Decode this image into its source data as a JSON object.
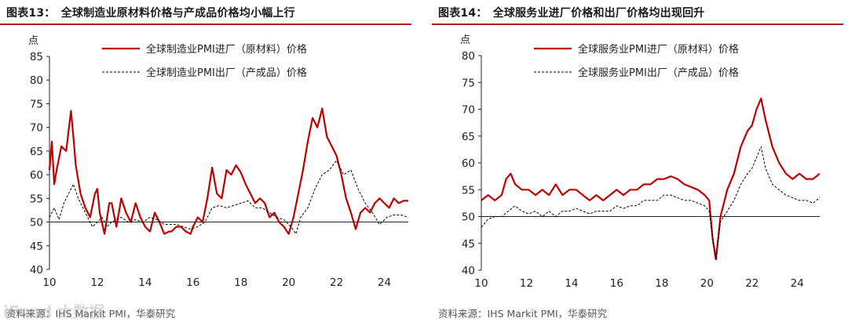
{
  "panels": [
    {
      "title": "图表13：　全球制造业原材料价格与产成品价格均小幅上行",
      "source": "资料来源：IHS Markit PMI，华泰研究"
    },
    {
      "title": "图表14：　全球服务业进厂价格和出厂价格均出现回升",
      "source": "资料来源：IHS Markit PMI，华泰研究"
    }
  ],
  "watermark": "iFund 大数据",
  "colors": {
    "input_line": "#c00000",
    "output_line": "#000000",
    "accent": "#b31b1b"
  },
  "chart_data": [
    {
      "type": "line",
      "ylabel": "点",
      "ylim": [
        40,
        85
      ],
      "yticks": [
        40,
        45,
        50,
        55,
        60,
        65,
        70,
        75,
        80,
        85
      ],
      "xlim": [
        2010,
        2025
      ],
      "xticks": [
        2010,
        2012,
        2014,
        2016,
        2018,
        2020,
        2022,
        2024
      ],
      "xtick_labels": [
        "10",
        "12",
        "14",
        "16",
        "18",
        "20",
        "22",
        "24"
      ],
      "baseline": 50,
      "legend": "top-center",
      "series": [
        {
          "name": "全球制造业PMI进厂（原材料）价格",
          "style": "solid",
          "x": [
            2010.0,
            2010.1,
            2010.2,
            2010.3,
            2010.5,
            2010.7,
            2010.9,
            2011.0,
            2011.1,
            2011.3,
            2011.5,
            2011.7,
            2011.9,
            2012.0,
            2012.1,
            2012.3,
            2012.5,
            2012.6,
            2012.8,
            2013.0,
            2013.2,
            2013.4,
            2013.6,
            2013.8,
            2014.0,
            2014.2,
            2014.4,
            2014.6,
            2014.8,
            2015.0,
            2015.1,
            2015.3,
            2015.5,
            2015.7,
            2015.9,
            2016.0,
            2016.2,
            2016.4,
            2016.6,
            2016.8,
            2017.0,
            2017.2,
            2017.4,
            2017.6,
            2017.8,
            2018.0,
            2018.2,
            2018.4,
            2018.6,
            2018.8,
            2019.0,
            2019.2,
            2019.4,
            2019.6,
            2019.8,
            2020.0,
            2020.2,
            2020.4,
            2020.6,
            2020.8,
            2021.0,
            2021.2,
            2021.4,
            2021.6,
            2021.8,
            2022.0,
            2022.2,
            2022.4,
            2022.6,
            2022.8,
            2023.0,
            2023.2,
            2023.4,
            2023.6,
            2023.8,
            2024.0,
            2024.2,
            2024.4,
            2024.6,
            2024.8,
            2025.0
          ],
          "values": [
            61,
            67,
            58,
            61,
            66,
            65,
            73.5,
            68,
            62,
            56,
            53,
            51,
            56,
            57,
            52,
            47.5,
            54,
            54,
            49,
            55,
            52,
            50,
            54,
            51,
            49,
            48,
            52,
            50,
            47.5,
            48,
            48,
            49,
            49,
            48,
            47.5,
            49,
            51,
            50,
            55,
            61.5,
            56,
            55,
            61,
            60,
            62,
            60.5,
            58,
            56,
            54,
            55,
            54,
            51,
            52,
            50,
            49,
            47.5,
            51,
            56,
            61,
            67,
            72,
            70,
            74,
            68,
            66,
            64,
            60,
            55,
            52,
            48.5,
            52,
            53,
            52,
            54,
            55,
            54,
            53,
            55,
            54,
            54.5,
            54.5
          ]
        },
        {
          "name": "全球制造业PMI出厂（产成品）价格",
          "style": "dashed",
          "x": [
            2010.0,
            2010.2,
            2010.4,
            2010.6,
            2010.8,
            2011.0,
            2011.2,
            2011.4,
            2011.6,
            2011.8,
            2012.0,
            2012.2,
            2012.4,
            2012.6,
            2012.8,
            2013.0,
            2013.3,
            2013.6,
            2013.9,
            2014.2,
            2014.5,
            2014.8,
            2015.0,
            2015.3,
            2015.6,
            2015.9,
            2016.2,
            2016.5,
            2016.8,
            2017.1,
            2017.4,
            2017.7,
            2018.0,
            2018.3,
            2018.6,
            2018.9,
            2019.2,
            2019.5,
            2019.8,
            2020.1,
            2020.3,
            2020.5,
            2020.8,
            2021.1,
            2021.4,
            2021.7,
            2022.0,
            2022.3,
            2022.6,
            2022.9,
            2023.2,
            2023.5,
            2023.8,
            2024.1,
            2024.4,
            2024.7,
            2025.0
          ],
          "values": [
            51,
            53,
            50.5,
            54,
            56,
            58,
            55,
            53,
            51,
            49,
            50,
            51,
            49,
            50,
            50.5,
            51,
            50,
            50.5,
            50,
            51,
            50.5,
            49.5,
            49.5,
            49.5,
            49,
            48.5,
            49,
            50,
            53,
            53.5,
            53,
            53.5,
            54,
            54.5,
            53,
            53,
            52,
            51,
            50.5,
            49,
            47.5,
            51,
            53,
            57,
            60,
            61,
            63,
            60,
            61,
            57,
            54,
            52,
            49.5,
            51,
            51.5,
            51.5,
            51
          ]
        }
      ]
    },
    {
      "type": "line",
      "ylabel": "点",
      "ylim": [
        40,
        80
      ],
      "yticks": [
        40,
        45,
        50,
        55,
        60,
        65,
        70,
        75,
        80
      ],
      "xlim": [
        2010,
        2025
      ],
      "xticks": [
        2010,
        2012,
        2014,
        2016,
        2018,
        2020,
        2022,
        2024
      ],
      "xtick_labels": [
        "10",
        "12",
        "14",
        "16",
        "18",
        "20",
        "22",
        "24"
      ],
      "baseline": 50,
      "legend": "top-center",
      "series": [
        {
          "name": "全球服务业PMI进厂（原材料）价格",
          "style": "solid",
          "x": [
            2010.0,
            2010.3,
            2010.6,
            2010.9,
            2011.1,
            2011.3,
            2011.5,
            2011.8,
            2012.1,
            2012.4,
            2012.7,
            2013.0,
            2013.3,
            2013.6,
            2013.9,
            2014.2,
            2014.5,
            2014.8,
            2015.1,
            2015.4,
            2015.7,
            2016.0,
            2016.3,
            2016.6,
            2016.9,
            2017.2,
            2017.5,
            2017.8,
            2018.1,
            2018.4,
            2018.7,
            2019.0,
            2019.3,
            2019.6,
            2019.9,
            2020.1,
            2020.25,
            2020.4,
            2020.6,
            2020.9,
            2021.2,
            2021.5,
            2021.8,
            2022.0,
            2022.2,
            2022.4,
            2022.6,
            2022.9,
            2023.2,
            2023.5,
            2023.8,
            2024.1,
            2024.4,
            2024.7,
            2025.0
          ],
          "values": [
            53,
            54,
            53,
            54,
            57,
            58,
            56,
            55,
            55,
            54,
            55,
            54,
            56,
            54,
            55,
            55,
            54,
            53,
            54,
            53,
            54,
            55,
            54,
            55,
            55,
            56,
            56,
            57,
            57,
            57.5,
            57,
            56,
            55.5,
            55,
            54,
            53,
            46,
            42,
            50,
            55,
            58,
            63,
            66,
            67,
            70,
            72,
            68,
            63,
            60,
            58,
            57,
            58,
            57,
            57,
            58
          ]
        },
        {
          "name": "全球服务业PMI出厂（产成品）价格",
          "style": "dashed",
          "x": [
            2010.0,
            2010.3,
            2010.6,
            2010.9,
            2011.2,
            2011.5,
            2011.8,
            2012.1,
            2012.4,
            2012.7,
            2013.0,
            2013.3,
            2013.6,
            2013.9,
            2014.2,
            2014.5,
            2014.8,
            2015.1,
            2015.4,
            2015.7,
            2016.0,
            2016.3,
            2016.6,
            2016.9,
            2017.2,
            2017.5,
            2017.8,
            2018.1,
            2018.4,
            2018.7,
            2019.0,
            2019.3,
            2019.6,
            2019.9,
            2020.1,
            2020.25,
            2020.4,
            2020.6,
            2020.9,
            2021.2,
            2021.5,
            2021.8,
            2022.0,
            2022.2,
            2022.4,
            2022.6,
            2022.9,
            2023.2,
            2023.5,
            2023.8,
            2024.1,
            2024.4,
            2024.7,
            2025.0
          ],
          "values": [
            48,
            49.5,
            50,
            50,
            51,
            52,
            51,
            50.5,
            51,
            50,
            51,
            50,
            51,
            51,
            51.5,
            51,
            50.5,
            51,
            51,
            51,
            52,
            51.5,
            52,
            52,
            53,
            53,
            53,
            54,
            54,
            53.5,
            53,
            53,
            52.5,
            52,
            51,
            46,
            42,
            49,
            51,
            53,
            56,
            58,
            59,
            61,
            63,
            59,
            56,
            55,
            54,
            53.5,
            53,
            53,
            52.5,
            53.5
          ]
        }
      ]
    }
  ]
}
